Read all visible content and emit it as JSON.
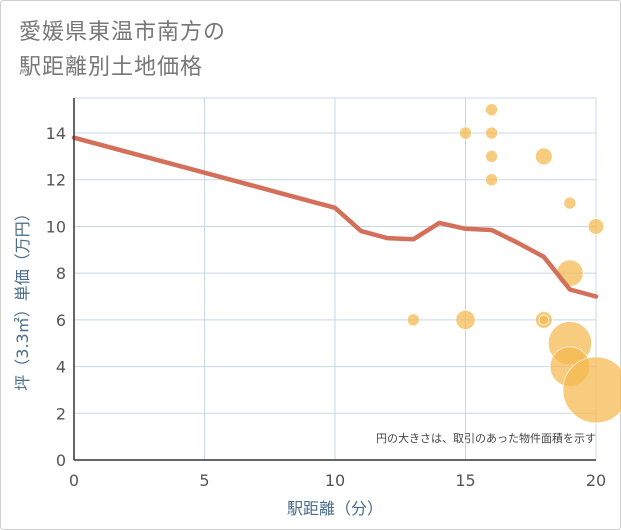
{
  "title_line1": "愛媛県東温市南方の",
  "title_line2": "駅距離別土地価格",
  "chart_data": {
    "type": "scatter",
    "title": "愛媛県東温市南方の駅距離別土地価格",
    "xlabel": "駅距離（分）",
    "ylabel": "坪（3.3㎡）単価（万円）",
    "xlim": [
      0,
      20
    ],
    "ylim": [
      0,
      15.5
    ],
    "x_ticks": [
      0,
      5,
      10,
      15,
      20
    ],
    "y_ticks": [
      0,
      2,
      4,
      6,
      8,
      10,
      12,
      14
    ],
    "grid": true,
    "note": "円の大きさは、取引のあった物件面積を示す",
    "colors": {
      "line": "#d4705a",
      "points": "#f5b94d",
      "grid": "#c8d7e6"
    },
    "line_series": {
      "x": [
        0,
        1,
        2,
        3,
        4,
        5,
        6,
        7,
        8,
        9,
        10,
        11,
        12,
        13,
        14,
        15,
        16,
        17,
        18,
        19,
        20
      ],
      "y": [
        13.8,
        13.5,
        13.2,
        12.9,
        12.6,
        12.3,
        12.0,
        11.7,
        11.4,
        11.1,
        10.8,
        9.8,
        9.5,
        9.45,
        10.15,
        9.9,
        9.85,
        9.3,
        8.7,
        7.3,
        7.0
      ]
    },
    "points": [
      {
        "x": 13,
        "y": 6,
        "size": 1
      },
      {
        "x": 15,
        "y": 14,
        "size": 1
      },
      {
        "x": 15,
        "y": 6,
        "size": 1.6
      },
      {
        "x": 16,
        "y": 15,
        "size": 1
      },
      {
        "x": 16,
        "y": 14,
        "size": 1
      },
      {
        "x": 16,
        "y": 13,
        "size": 1
      },
      {
        "x": 16,
        "y": 12,
        "size": 1
      },
      {
        "x": 18,
        "y": 13,
        "size": 1.4
      },
      {
        "x": 18,
        "y": 6,
        "size": 1.4
      },
      {
        "x": 18,
        "y": 6,
        "size": 0.8
      },
      {
        "x": 19,
        "y": 11,
        "size": 1
      },
      {
        "x": 19,
        "y": 8,
        "size": 2.2
      },
      {
        "x": 19,
        "y": 5,
        "size": 3.6
      },
      {
        "x": 19,
        "y": 4,
        "size": 3.3
      },
      {
        "x": 20,
        "y": 10,
        "size": 1.3
      },
      {
        "x": 20,
        "y": 3,
        "size": 5.5
      }
    ]
  }
}
